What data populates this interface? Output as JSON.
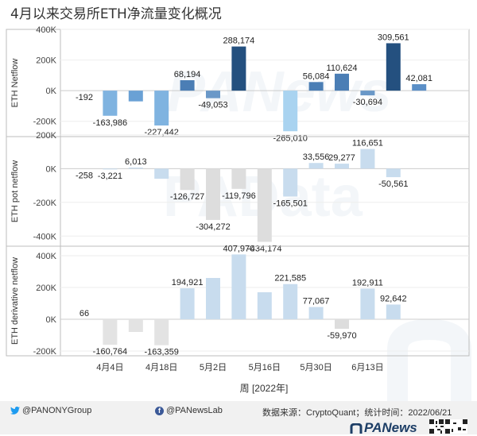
{
  "title": "4月以来交易所ETH净流量变化概况",
  "footer": {
    "twitter": "@PANONYGroup",
    "facebook": "@PANewsLab",
    "source": "数据来源：CryptoQuant；统计时间：2022/06/21",
    "logo": "PANews"
  },
  "chart_data": [
    {
      "type": "bar",
      "ylabel": "ETH Netflow",
      "ylim": [
        -300000,
        400000
      ],
      "yticks": [
        "400K",
        "200K",
        "0K",
        "-200K"
      ],
      "ytick_values": [
        400000,
        200000,
        0,
        -200000
      ],
      "values": [
        -192,
        -163986,
        -70000,
        -227442,
        68194,
        -49053,
        288174,
        0,
        -265010,
        56084,
        110624,
        -30694,
        309561,
        42081
      ],
      "labels": [
        "-192",
        "-163,986",
        "",
        "-227,442",
        "68,194",
        "-49,053",
        "288,174",
        "",
        "-265,010",
        "56,084",
        "110,624",
        "-30,694",
        "309,561",
        "42,081"
      ],
      "colors": [
        "#5b8fc7",
        "#7fb3e0",
        "#6aa1d5",
        "#7fb3e0",
        "#4b7eb5",
        "#6a98c8",
        "#24507f",
        "#ffffff",
        "#a9d3f0",
        "#4b7eb5",
        "#4b7eb5",
        "#6a98c8",
        "#24507f",
        "#5b8fc7"
      ]
    },
    {
      "type": "bar",
      "ylabel": "ETH pot netflow",
      "ylim": [
        -460000,
        190000
      ],
      "yticks": [
        "200K",
        "0K",
        "-200K",
        "-400K"
      ],
      "ytick_values": [
        200000,
        0,
        -200000,
        -400000
      ],
      "values": [
        -258,
        -3221,
        6013,
        -60000,
        -126727,
        -304272,
        -119796,
        -434174,
        -165501,
        33556,
        29277,
        116651,
        -50561,
        0
      ],
      "labels": [
        "-258",
        "-3,221",
        "6,013",
        "",
        "-126,727",
        "-304,272",
        "-119,796",
        "-434,174",
        "-165,501",
        "33,556",
        "29,277",
        "116,651",
        "-50,561",
        ""
      ],
      "colors": [
        "#c8dcee",
        "#c8dcee",
        "#c8dcee",
        "#c8dcee",
        "#dddddd",
        "#dddddd",
        "#dddddd",
        "#dddddd",
        "#c8dcee",
        "#c8dcee",
        "#c8dcee",
        "#c8dcee",
        "#c8dcee",
        "#ffffff"
      ]
    },
    {
      "type": "bar",
      "ylabel": "ETH derivative netflow",
      "ylim": [
        -230000,
        460000
      ],
      "yticks": [
        "400K",
        "200K",
        "0K",
        "-200K"
      ],
      "ytick_values": [
        400000,
        200000,
        0,
        -200000
      ],
      "values": [
        66,
        -160764,
        -80000,
        -163359,
        194921,
        260000,
        407970,
        170000,
        221585,
        77067,
        -59970,
        192911,
        92642,
        0
      ],
      "labels": [
        "66",
        "-160,764",
        "",
        "-163,359",
        "194,921",
        "",
        "407,970",
        "",
        "221,585",
        "77,067",
        "-59,970",
        "192,911",
        "92,642",
        ""
      ],
      "colors": [
        "#e3e3e3",
        "#e3e3e3",
        "#e3e3e3",
        "#e3e3e3",
        "#c8dcee",
        "#c8dcee",
        "#c8dcee",
        "#c8dcee",
        "#c8dcee",
        "#c8dcee",
        "#dddddd",
        "#c8dcee",
        "#c8dcee",
        "#ffffff"
      ],
      "xticks": [
        "4月4日",
        "4月18日",
        "5月2日",
        "5月16日",
        "5月30日",
        "6月13日"
      ],
      "xtick_index": [
        1,
        3,
        5,
        7,
        9,
        11
      ],
      "xlabel": "周 [2022年]"
    }
  ]
}
